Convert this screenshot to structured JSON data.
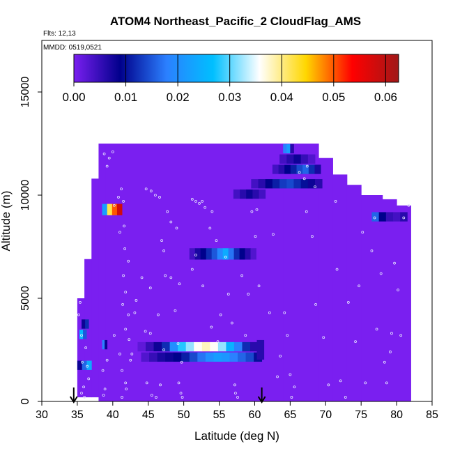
{
  "chart_data": {
    "type": "heatmap",
    "title": "ATOM4 Northeast_Pacific_2 CloudFlag_AMS",
    "flights_label": "Flts: 12,13",
    "dates_label": "MMDD: 0519,0521",
    "xlabel": "Latitude (deg N)",
    "ylabel": "Altitude (m)",
    "xlim": [
      30,
      85
    ],
    "ylim": [
      0,
      17500
    ],
    "x_ticks": [
      "30",
      "35",
      "40",
      "45",
      "50",
      "55",
      "60",
      "65",
      "70",
      "75",
      "80",
      "85"
    ],
    "y_ticks": [
      "0",
      "5000",
      "10000",
      "15000"
    ],
    "colorbar": {
      "range": [
        0,
        0.0625
      ],
      "ticks": [
        "0.00",
        "0.01",
        "0.02",
        "0.03",
        "0.04",
        "0.05",
        "0.06"
      ],
      "colors": [
        "#7a1ff0",
        "#00008b",
        "#2b80ff",
        "#00bfff",
        "#ffffff",
        "#ffd700",
        "#ff0000",
        "#a01818"
      ]
    },
    "background_value": 0.0,
    "envelope": [
      {
        "lat_from": 35,
        "lat_to": 36,
        "alt_from": 200,
        "alt_to": 5000
      },
      {
        "lat_from": 36,
        "lat_to": 37,
        "alt_from": 200,
        "alt_to": 6900
      },
      {
        "lat_from": 37,
        "lat_to": 38,
        "alt_from": 200,
        "alt_to": 10800
      },
      {
        "lat_from": 38,
        "lat_to": 39,
        "alt_from": 0,
        "alt_to": 12500
      },
      {
        "lat_from": 39,
        "lat_to": 64,
        "alt_from": 0,
        "alt_to": 12500
      },
      {
        "lat_from": 64,
        "lat_to": 69,
        "alt_from": 0,
        "alt_to": 12500
      },
      {
        "lat_from": 69,
        "lat_to": 71,
        "alt_from": 0,
        "alt_to": 11800
      },
      {
        "lat_from": 71,
        "lat_to": 73,
        "alt_from": 0,
        "alt_to": 11000
      },
      {
        "lat_from": 73,
        "lat_to": 75,
        "alt_from": 0,
        "alt_to": 10500
      },
      {
        "lat_from": 75,
        "lat_to": 78,
        "alt_from": 0,
        "alt_to": 10000
      },
      {
        "lat_from": 78,
        "lat_to": 80,
        "alt_from": 0,
        "alt_to": 9800
      },
      {
        "lat_from": 80,
        "lat_to": 82,
        "alt_from": 0,
        "alt_to": 9500
      }
    ],
    "cloud_segments": [
      {
        "alt": 2650,
        "thick": 450,
        "lat": [
          43.5,
          60.5
        ],
        "values": [
          0.002,
          0.005,
          0.008,
          0.012,
          0.02,
          0.028,
          0.032,
          0.036,
          0.038,
          0.036,
          0.032,
          0.025,
          0.018,
          0.012,
          0.006
        ]
      },
      {
        "alt": 2150,
        "thick": 450,
        "lat": [
          44.0,
          61.0
        ],
        "values": [
          0.003,
          0.005,
          0.007,
          0.008,
          0.009,
          0.011,
          0.014,
          0.017,
          0.02,
          0.022,
          0.021,
          0.018,
          0.016,
          0.014,
          0.01
        ]
      },
      {
        "alt": 2500,
        "thick": 950,
        "lat": [
          60.3,
          61.3
        ],
        "values": [
          0.006
        ]
      },
      {
        "alt": 2750,
        "thick": 450,
        "lat": [
          38.5,
          39.2
        ],
        "values": [
          0.018,
          0.008
        ]
      },
      {
        "alt": 3250,
        "thick": 450,
        "lat": [
          35.3,
          36.3
        ],
        "values": [
          0.026,
          0.015
        ]
      },
      {
        "alt": 3750,
        "thick": 450,
        "lat": [
          35.6,
          36.6
        ],
        "values": [
          0.008,
          0.012
        ]
      },
      {
        "alt": 1750,
        "thick": 450,
        "lat": [
          35.0,
          37.0
        ],
        "values": [
          0.008,
          0.016,
          0.024
        ]
      },
      {
        "alt": 7150,
        "thick": 550,
        "lat": [
          50.8,
          60.2
        ],
        "values": [
          0.004,
          0.007,
          0.009,
          0.012,
          0.015,
          0.019,
          0.024,
          0.017,
          0.012,
          0.009,
          0.006,
          0.003
        ]
      },
      {
        "alt": 9300,
        "thick": 550,
        "lat": [
          38.5,
          41.3
        ],
        "values": [
          0.022,
          0.042,
          0.05,
          0.058
        ]
      },
      {
        "alt": 10050,
        "thick": 450,
        "lat": [
          57.0,
          61.5
        ],
        "values": [
          0.004,
          0.006,
          0.008,
          0.006,
          0.004
        ]
      },
      {
        "alt": 10550,
        "thick": 450,
        "lat": [
          59.5,
          69.5
        ],
        "values": [
          0.004,
          0.006,
          0.009,
          0.011,
          0.013,
          0.014,
          0.012,
          0.01,
          0.008,
          0.006
        ]
      },
      {
        "alt": 11250,
        "thick": 450,
        "lat": [
          62.5,
          69.3
        ],
        "values": [
          0.004,
          0.006,
          0.009,
          0.011,
          0.014,
          0.016,
          0.012,
          0.007
        ]
      },
      {
        "alt": 11750,
        "thick": 450,
        "lat": [
          63.5,
          68.5
        ],
        "values": [
          0.004,
          0.006,
          0.008,
          0.005,
          0.003
        ]
      },
      {
        "alt": 12250,
        "thick": 450,
        "lat": [
          64.0,
          65.5
        ],
        "values": [
          0.018,
          0.022,
          0.006
        ]
      },
      {
        "alt": 8950,
        "thick": 450,
        "lat": [
          76.5,
          81.5
        ],
        "values": [
          0.016,
          0.009,
          0.005,
          0.004,
          0.006
        ]
      }
    ],
    "sample_points": [
      [
        38.8,
        12000
      ],
      [
        39.5,
        11800
      ],
      [
        40.0,
        12100
      ],
      [
        39.2,
        11400
      ],
      [
        41.2,
        10300
      ],
      [
        40.8,
        9900
      ],
      [
        41.5,
        9700
      ],
      [
        40.2,
        9500
      ],
      [
        41.6,
        8500
      ],
      [
        41.0,
        8200
      ],
      [
        41.7,
        7400
      ],
      [
        42.2,
        6800
      ],
      [
        41.5,
        6100
      ],
      [
        41.8,
        5300
      ],
      [
        41.4,
        4700
      ],
      [
        42.2,
        4200
      ],
      [
        41.8,
        3500
      ],
      [
        42.3,
        3000
      ],
      [
        41.0,
        2300
      ],
      [
        42.5,
        2000
      ],
      [
        41.3,
        1500
      ],
      [
        41.8,
        900
      ],
      [
        41.9,
        600
      ],
      [
        41.3,
        200
      ],
      [
        35.4,
        4800
      ],
      [
        35.2,
        4200
      ],
      [
        35.6,
        3200
      ],
      [
        36.2,
        2600
      ],
      [
        35.7,
        1900
      ],
      [
        36.4,
        1700
      ],
      [
        36.6,
        1100
      ],
      [
        35.9,
        700
      ],
      [
        35.6,
        400
      ],
      [
        36.0,
        200
      ],
      [
        38.6,
        1500
      ],
      [
        38.9,
        600
      ],
      [
        38.7,
        300
      ],
      [
        39.2,
        2000
      ],
      [
        40.2,
        3200
      ],
      [
        42.7,
        2300
      ],
      [
        44.7,
        10300
      ],
      [
        45.4,
        10200
      ],
      [
        46.0,
        10000
      ],
      [
        46.6,
        9900
      ],
      [
        47.7,
        9200
      ],
      [
        48.2,
        8700
      ],
      [
        49.0,
        8400
      ],
      [
        48.2,
        6000
      ],
      [
        47.2,
        7300
      ],
      [
        45.3,
        5500
      ],
      [
        46.4,
        4200
      ],
      [
        47.2,
        2500
      ],
      [
        46.7,
        800
      ],
      [
        46.1,
        200
      ],
      [
        49.2,
        2800
      ],
      [
        49.7,
        1900
      ],
      [
        49.3,
        900
      ],
      [
        49.6,
        400
      ],
      [
        49.8,
        200
      ],
      [
        51.2,
        9800
      ],
      [
        51.7,
        9700
      ],
      [
        52.2,
        9600
      ],
      [
        52.6,
        9700
      ],
      [
        53.0,
        9400
      ],
      [
        54.0,
        9200
      ],
      [
        53.7,
        8400
      ],
      [
        54.6,
        7800
      ],
      [
        51.7,
        7100
      ],
      [
        51.2,
        6400
      ],
      [
        52.7,
        5600
      ],
      [
        53.9,
        3600
      ],
      [
        54.8,
        2900
      ],
      [
        55.2,
        4200
      ],
      [
        55.9,
        7000
      ],
      [
        56.3,
        5200
      ],
      [
        56.8,
        3800
      ],
      [
        57.2,
        800
      ],
      [
        57.3,
        400
      ],
      [
        57.6,
        200
      ],
      [
        58.2,
        6100
      ],
      [
        58.7,
        3200
      ],
      [
        59.1,
        5200
      ],
      [
        59.6,
        9200
      ],
      [
        60.3,
        9300
      ],
      [
        60.1,
        8000
      ],
      [
        60.6,
        5600
      ],
      [
        62.6,
        8100
      ],
      [
        62.1,
        4300
      ],
      [
        63.6,
        2200
      ],
      [
        63.2,
        1200
      ],
      [
        64.2,
        4300
      ],
      [
        64.6,
        3200
      ],
      [
        65.0,
        1300
      ],
      [
        65.6,
        700
      ],
      [
        65.2,
        200
      ],
      [
        66.3,
        11100
      ],
      [
        67.0,
        10800
      ],
      [
        67.4,
        11400
      ],
      [
        68.5,
        10400
      ],
      [
        67.3,
        9200
      ],
      [
        68.1,
        8000
      ],
      [
        68.6,
        4700
      ],
      [
        69.7,
        3100
      ],
      [
        70.4,
        800
      ],
      [
        71.4,
        9700
      ],
      [
        71.6,
        6400
      ],
      [
        72.1,
        1000
      ],
      [
        72.8,
        200
      ],
      [
        73.2,
        4800
      ],
      [
        74.2,
        2900
      ],
      [
        74.7,
        5600
      ],
      [
        75.6,
        900
      ],
      [
        75.2,
        8200
      ],
      [
        76.5,
        7300
      ],
      [
        77.2,
        3500
      ],
      [
        78.3,
        1900
      ],
      [
        78.6,
        900
      ],
      [
        79.3,
        3300
      ],
      [
        79.7,
        6700
      ],
      [
        80.6,
        3200
      ],
      [
        80.2,
        5400
      ],
      [
        81.0,
        8900
      ],
      [
        81.7,
        9500
      ],
      [
        77.8,
        6200
      ],
      [
        76.9,
        8900
      ],
      [
        79.1,
        2400
      ],
      [
        43.3,
        4900
      ],
      [
        44.1,
        6000
      ],
      [
        43.1,
        4300
      ],
      [
        44.6,
        3400
      ],
      [
        45.3,
        3300
      ],
      [
        44.8,
        900
      ],
      [
        45.5,
        300
      ],
      [
        46.9,
        7800
      ],
      [
        47.4,
        6100
      ],
      [
        49.4,
        5700
      ],
      [
        48.8,
        4400
      ]
    ],
    "arrows_lat": [
      34.5,
      61.0
    ]
  }
}
